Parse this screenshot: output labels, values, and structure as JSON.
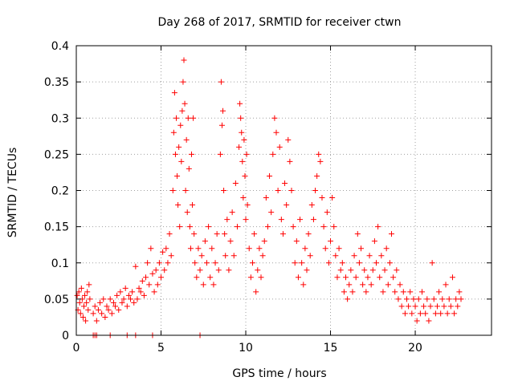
{
  "chart_data": {
    "type": "scatter",
    "title": "Day 268 of 2017, SRMTID for receiver ctwn",
    "xlabel": "GPS time / hours",
    "ylabel": "SRMTID / TECUs",
    "xlim": [
      0,
      24.5
    ],
    "ylim": [
      0,
      0.4
    ],
    "xticks": [
      0,
      5,
      10,
      15,
      20
    ],
    "xtick_labels": [
      "0",
      "5",
      "10",
      "15",
      "20"
    ],
    "yticks": [
      0,
      0.05,
      0.1,
      0.15,
      0.2,
      0.25,
      0.3,
      0.35,
      0.4
    ],
    "ytick_labels": [
      "0",
      "0.05",
      "0.1",
      "0.15",
      "0.2",
      "0.25",
      "0.3",
      "0.35",
      "0.4"
    ],
    "grid": true,
    "marker": "+",
    "color": "#ff0000",
    "series": [
      {
        "name": "SRMTID",
        "points": [
          [
            0.05,
            0.055
          ],
          [
            0.1,
            0.035
          ],
          [
            0.15,
            0.06
          ],
          [
            0.2,
            0.045
          ],
          [
            0.25,
            0.03
          ],
          [
            0.3,
            0.065
          ],
          [
            0.35,
            0.05
          ],
          [
            0.4,
            0.025
          ],
          [
            0.45,
            0.04
          ],
          [
            0.5,
            0.055
          ],
          [
            0.55,
            0.02
          ],
          [
            0.6,
            0.045
          ],
          [
            0.65,
            0.06
          ],
          [
            0.7,
            0.035
          ],
          [
            0.75,
            0.07
          ],
          [
            0.8,
            0.05
          ],
          [
            1.0,
            0.0
          ],
          [
            1.1,
            0.0
          ],
          [
            1.2,
            0.0
          ],
          [
            1.0,
            0.03
          ],
          [
            1.1,
            0.04
          ],
          [
            1.2,
            0.02
          ],
          [
            1.3,
            0.035
          ],
          [
            1.4,
            0.045
          ],
          [
            1.5,
            0.03
          ],
          [
            1.6,
            0.05
          ],
          [
            1.7,
            0.025
          ],
          [
            1.8,
            0.04
          ],
          [
            1.9,
            0.035
          ],
          [
            2.0,
            0.05
          ],
          [
            2.0,
            0.0
          ],
          [
            2.1,
            0.03
          ],
          [
            2.2,
            0.045
          ],
          [
            2.3,
            0.04
          ],
          [
            2.4,
            0.055
          ],
          [
            2.5,
            0.035
          ],
          [
            2.6,
            0.06
          ],
          [
            2.7,
            0.045
          ],
          [
            2.8,
            0.05
          ],
          [
            2.9,
            0.065
          ],
          [
            3.0,
            0.0
          ],
          [
            3.0,
            0.04
          ],
          [
            3.1,
            0.055
          ],
          [
            3.2,
            0.05
          ],
          [
            3.3,
            0.06
          ],
          [
            3.4,
            0.045
          ],
          [
            3.5,
            0.0
          ],
          [
            3.5,
            0.095
          ],
          [
            3.6,
            0.05
          ],
          [
            3.7,
            0.065
          ],
          [
            3.8,
            0.06
          ],
          [
            3.9,
            0.075
          ],
          [
            4.0,
            0.055
          ],
          [
            4.1,
            0.08
          ],
          [
            4.2,
            0.1
          ],
          [
            4.3,
            0.07
          ],
          [
            4.4,
            0.12
          ],
          [
            4.5,
            0.0
          ],
          [
            4.5,
            0.085
          ],
          [
            4.6,
            0.06
          ],
          [
            4.7,
            0.09
          ],
          [
            4.8,
            0.07
          ],
          [
            4.9,
            0.1
          ],
          [
            5.0,
            0.08
          ],
          [
            5.1,
            0.115
          ],
          [
            5.2,
            0.09
          ],
          [
            5.3,
            0.12
          ],
          [
            5.4,
            0.1
          ],
          [
            5.5,
            0.14
          ],
          [
            5.6,
            0.11
          ],
          [
            5.7,
            0.2
          ],
          [
            5.75,
            0.28
          ],
          [
            5.8,
            0.335
          ],
          [
            5.85,
            0.25
          ],
          [
            5.9,
            0.3
          ],
          [
            5.95,
            0.22
          ],
          [
            6.0,
            0.18
          ],
          [
            6.05,
            0.26
          ],
          [
            6.1,
            0.15
          ],
          [
            6.15,
            0.29
          ],
          [
            6.2,
            0.24
          ],
          [
            6.25,
            0.31
          ],
          [
            6.3,
            0.35
          ],
          [
            6.35,
            0.38
          ],
          [
            6.4,
            0.32
          ],
          [
            6.45,
            0.2
          ],
          [
            6.5,
            0.27
          ],
          [
            6.55,
            0.17
          ],
          [
            6.6,
            0.3
          ],
          [
            6.65,
            0.23
          ],
          [
            6.7,
            0.15
          ],
          [
            6.75,
            0.12
          ],
          [
            6.8,
            0.25
          ],
          [
            6.85,
            0.18
          ],
          [
            6.9,
            0.3
          ],
          [
            6.95,
            0.14
          ],
          [
            7.0,
            0.1
          ],
          [
            7.1,
            0.08
          ],
          [
            7.2,
            0.12
          ],
          [
            7.3,
            0.0
          ],
          [
            7.3,
            0.09
          ],
          [
            7.4,
            0.11
          ],
          [
            7.5,
            0.07
          ],
          [
            7.6,
            0.13
          ],
          [
            7.7,
            0.1
          ],
          [
            7.8,
            0.15
          ],
          [
            7.9,
            0.08
          ],
          [
            8.0,
            0.12
          ],
          [
            8.1,
            0.07
          ],
          [
            8.2,
            0.1
          ],
          [
            8.3,
            0.14
          ],
          [
            8.4,
            0.09
          ],
          [
            8.5,
            0.25
          ],
          [
            8.55,
            0.35
          ],
          [
            8.6,
            0.29
          ],
          [
            8.65,
            0.31
          ],
          [
            8.7,
            0.2
          ],
          [
            8.75,
            0.14
          ],
          [
            8.8,
            0.11
          ],
          [
            8.9,
            0.16
          ],
          [
            9.0,
            0.09
          ],
          [
            9.1,
            0.13
          ],
          [
            9.2,
            0.17
          ],
          [
            9.3,
            0.11
          ],
          [
            9.4,
            0.21
          ],
          [
            9.5,
            0.15
          ],
          [
            9.6,
            0.26
          ],
          [
            9.65,
            0.32
          ],
          [
            9.7,
            0.3
          ],
          [
            9.75,
            0.28
          ],
          [
            9.8,
            0.24
          ],
          [
            9.85,
            0.19
          ],
          [
            9.9,
            0.27
          ],
          [
            9.95,
            0.22
          ],
          [
            10.0,
            0.16
          ],
          [
            10.05,
            0.25
          ],
          [
            10.1,
            0.18
          ],
          [
            10.2,
            0.12
          ],
          [
            10.3,
            0.08
          ],
          [
            10.4,
            0.1
          ],
          [
            10.5,
            0.14
          ],
          [
            10.6,
            0.06
          ],
          [
            10.7,
            0.09
          ],
          [
            10.8,
            0.12
          ],
          [
            10.9,
            0.08
          ],
          [
            11.0,
            0.11
          ],
          [
            11.1,
            0.13
          ],
          [
            11.2,
            0.19
          ],
          [
            11.3,
            0.15
          ],
          [
            11.4,
            0.22
          ],
          [
            11.5,
            0.17
          ],
          [
            11.6,
            0.25
          ],
          [
            11.7,
            0.3
          ],
          [
            11.8,
            0.28
          ],
          [
            11.9,
            0.2
          ],
          [
            12.0,
            0.26
          ],
          [
            12.1,
            0.16
          ],
          [
            12.2,
            0.14
          ],
          [
            12.3,
            0.21
          ],
          [
            12.4,
            0.18
          ],
          [
            12.5,
            0.27
          ],
          [
            12.6,
            0.24
          ],
          [
            12.7,
            0.2
          ],
          [
            12.8,
            0.15
          ],
          [
            12.9,
            0.1
          ],
          [
            13.0,
            0.13
          ],
          [
            13.1,
            0.08
          ],
          [
            13.2,
            0.16
          ],
          [
            13.3,
            0.1
          ],
          [
            13.4,
            0.07
          ],
          [
            13.5,
            0.12
          ],
          [
            13.6,
            0.09
          ],
          [
            13.7,
            0.14
          ],
          [
            13.8,
            0.11
          ],
          [
            13.9,
            0.18
          ],
          [
            14.0,
            0.16
          ],
          [
            14.1,
            0.2
          ],
          [
            14.2,
            0.22
          ],
          [
            14.3,
            0.25
          ],
          [
            14.4,
            0.24
          ],
          [
            14.5,
            0.19
          ],
          [
            14.6,
            0.15
          ],
          [
            14.7,
            0.12
          ],
          [
            14.8,
            0.17
          ],
          [
            14.9,
            0.1
          ],
          [
            15.0,
            0.13
          ],
          [
            15.1,
            0.19
          ],
          [
            15.2,
            0.15
          ],
          [
            15.3,
            0.11
          ],
          [
            15.4,
            0.08
          ],
          [
            15.5,
            0.12
          ],
          [
            15.6,
            0.09
          ],
          [
            15.7,
            0.1
          ],
          [
            15.8,
            0.06
          ],
          [
            15.9,
            0.08
          ],
          [
            16.0,
            0.05
          ],
          [
            16.1,
            0.07
          ],
          [
            16.2,
            0.09
          ],
          [
            16.3,
            0.06
          ],
          [
            16.4,
            0.11
          ],
          [
            16.5,
            0.08
          ],
          [
            16.6,
            0.14
          ],
          [
            16.7,
            0.1
          ],
          [
            16.8,
            0.12
          ],
          [
            16.9,
            0.07
          ],
          [
            17.0,
            0.09
          ],
          [
            17.1,
            0.06
          ],
          [
            17.2,
            0.08
          ],
          [
            17.3,
            0.11
          ],
          [
            17.4,
            0.07
          ],
          [
            17.5,
            0.09
          ],
          [
            17.6,
            0.13
          ],
          [
            17.7,
            0.1
          ],
          [
            17.8,
            0.15
          ],
          [
            17.9,
            0.08
          ],
          [
            18.0,
            0.11
          ],
          [
            18.1,
            0.06
          ],
          [
            18.2,
            0.09
          ],
          [
            18.3,
            0.12
          ],
          [
            18.4,
            0.07
          ],
          [
            18.5,
            0.1
          ],
          [
            18.6,
            0.14
          ],
          [
            18.7,
            0.08
          ],
          [
            18.8,
            0.06
          ],
          [
            18.9,
            0.09
          ],
          [
            19.0,
            0.05
          ],
          [
            19.1,
            0.07
          ],
          [
            19.2,
            0.04
          ],
          [
            19.3,
            0.06
          ],
          [
            19.4,
            0.03
          ],
          [
            19.5,
            0.05
          ],
          [
            19.6,
            0.04
          ],
          [
            19.7,
            0.06
          ],
          [
            19.8,
            0.03
          ],
          [
            19.9,
            0.05
          ],
          [
            20.0,
            0.04
          ],
          [
            20.1,
            0.02
          ],
          [
            20.2,
            0.05
          ],
          [
            20.3,
            0.03
          ],
          [
            20.4,
            0.06
          ],
          [
            20.5,
            0.04
          ],
          [
            20.6,
            0.03
          ],
          [
            20.7,
            0.05
          ],
          [
            20.8,
            0.02
          ],
          [
            20.9,
            0.04
          ],
          [
            21.0,
            0.1
          ],
          [
            21.1,
            0.05
          ],
          [
            21.2,
            0.03
          ],
          [
            21.3,
            0.04
          ],
          [
            21.4,
            0.06
          ],
          [
            21.5,
            0.03
          ],
          [
            21.6,
            0.05
          ],
          [
            21.7,
            0.04
          ],
          [
            21.8,
            0.07
          ],
          [
            21.9,
            0.03
          ],
          [
            22.0,
            0.05
          ],
          [
            22.1,
            0.04
          ],
          [
            22.2,
            0.08
          ],
          [
            22.3,
            0.03
          ],
          [
            22.4,
            0.05
          ],
          [
            22.5,
            0.04
          ],
          [
            22.6,
            0.06
          ],
          [
            22.7,
            0.05
          ]
        ]
      }
    ]
  }
}
